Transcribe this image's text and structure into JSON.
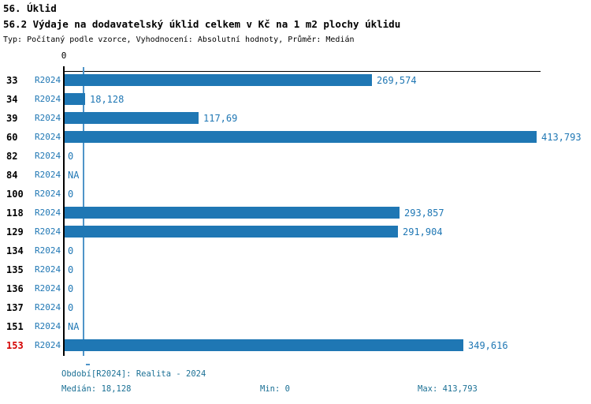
{
  "header": {
    "title": "56. Úklid",
    "subtitle": "56.2 Výdaje na dodavatelský úklid celkem v Kč na 1 m2 plochy úklidu",
    "meta": "Typ: Počítaný podle vzorce, Vyhodnocení: Absolutní hodnoty, Průměr: Medián"
  },
  "chart_data": {
    "type": "bar",
    "orientation": "horizontal",
    "series_label": "R2024",
    "categories": [
      "33",
      "34",
      "39",
      "60",
      "82",
      "84",
      "100",
      "118",
      "129",
      "134",
      "135",
      "136",
      "137",
      "151",
      "153"
    ],
    "values": [
      269.574,
      18.128,
      117.69,
      413.793,
      0,
      null,
      0,
      293.857,
      291.904,
      0,
      0,
      0,
      0,
      null,
      349.616
    ],
    "value_labels": [
      "269,574",
      "18,128",
      "117,69",
      "413,793",
      "0",
      "NA",
      "0",
      "293,857",
      "291,904",
      "0",
      "0",
      "0",
      "0",
      "NA",
      "349,616"
    ],
    "highlighted_category": "153",
    "axis": {
      "zero_label": "0",
      "min": 0,
      "max": 413.793,
      "median": 18.128
    },
    "colors": {
      "bar": "#1f77b4",
      "value_text": "#1f77b4",
      "median_line": "#4f94c8",
      "highlight_text": "#d40000",
      "category_text": "#000000"
    },
    "legend_position": "none",
    "grid": false
  },
  "footer": {
    "period": "Období[R2024]: Realita - 2024",
    "median": "Medián: 18,128",
    "min": "Min: 0",
    "max": "Max: 413,793"
  }
}
